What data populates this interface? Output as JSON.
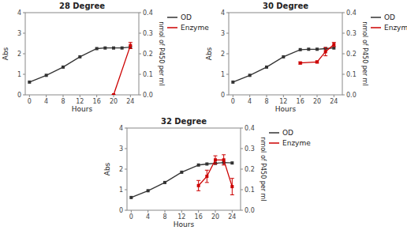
{
  "chart_data": [
    {
      "type": "line",
      "title": "28 Degree",
      "x_label": "Hours",
      "y_label": "Abs",
      "y2_label": "nmol of P450 per ml",
      "xlim": [
        -1,
        26
      ],
      "ylim": [
        0,
        4
      ],
      "y2lim": [
        0.0,
        0.4
      ],
      "xticks": [
        0,
        4,
        8,
        12,
        16,
        20,
        24
      ],
      "yticks": [
        0,
        1,
        2,
        3,
        4
      ],
      "y2ticks": [
        {
          "value": 0.0,
          "label": "0.0"
        },
        0.1,
        0.2,
        0.3,
        0.4
      ],
      "legend": "right",
      "series": [
        {
          "name": "OD",
          "color": "#333333",
          "marker": "square",
          "x": [
            0,
            4,
            8,
            12,
            16,
            18,
            20,
            22,
            24
          ],
          "values": [
            0.62,
            0.95,
            1.35,
            1.85,
            2.25,
            2.28,
            2.28,
            2.28,
            2.32
          ]
        },
        {
          "name": "Enzyme",
          "color": "#cc0000",
          "marker": "square",
          "axis": "y2",
          "x": [
            20,
            24
          ],
          "values": [
            0.0,
            0.24
          ],
          "error": [
            0.0,
            0.015
          ]
        }
      ]
    },
    {
      "type": "line",
      "title": "30 Degree",
      "x_label": "Hours",
      "y_label": "Abs",
      "y2_label": "nmol of P450 per ml",
      "xlim": [
        -1,
        26
      ],
      "ylim": [
        0,
        4
      ],
      "y2lim": [
        0.0,
        0.4
      ],
      "xticks": [
        0,
        4,
        8,
        12,
        16,
        20,
        24
      ],
      "yticks": [
        0,
        1,
        2,
        3,
        4
      ],
      "y2ticks": [
        {
          "value": 0.0,
          "label": "0.0"
        },
        0.1,
        0.2,
        0.3,
        0.4
      ],
      "legend": "right",
      "series": [
        {
          "name": "OD",
          "color": "#333333",
          "marker": "square",
          "x": [
            0,
            4,
            8,
            12,
            16,
            18,
            20,
            22,
            24
          ],
          "values": [
            0.62,
            0.95,
            1.35,
            1.85,
            2.2,
            2.22,
            2.22,
            2.25,
            2.28
          ]
        },
        {
          "name": "Enzyme",
          "color": "#cc0000",
          "marker": "square",
          "axis": "y2",
          "x": [
            16,
            20,
            22,
            24
          ],
          "values": [
            0.155,
            0.16,
            0.21,
            0.245
          ],
          "error": [
            0.005,
            0.005,
            0.02,
            0.01
          ]
        }
      ]
    },
    {
      "type": "line",
      "title": "32 Degree",
      "x_label": "Hours",
      "y_label": "Abs",
      "y2_label": "nmol of P450 per ml",
      "xlim": [
        -1,
        26
      ],
      "ylim": [
        0,
        4
      ],
      "y2lim": [
        0.0,
        0.4
      ],
      "xticks": [
        0,
        4,
        8,
        12,
        16,
        20,
        24
      ],
      "yticks": [
        0,
        1,
        2,
        3,
        4
      ],
      "y2ticks": [
        {
          "value": 0.0,
          "label": "0.0"
        },
        0.1,
        0.2,
        0.3,
        0.4
      ],
      "legend": "right",
      "series": [
        {
          "name": "OD",
          "color": "#333333",
          "marker": "square",
          "x": [
            0,
            4,
            8,
            12,
            16,
            18,
            20,
            22,
            24
          ],
          "values": [
            0.62,
            0.95,
            1.35,
            1.85,
            2.2,
            2.25,
            2.28,
            2.32,
            2.3
          ]
        },
        {
          "name": "Enzyme",
          "color": "#cc0000",
          "marker": "square",
          "axis": "y2",
          "x": [
            16,
            18,
            20,
            22,
            24
          ],
          "values": [
            0.12,
            0.165,
            0.245,
            0.245,
            0.115
          ],
          "error": [
            0.025,
            0.03,
            0.02,
            0.025,
            0.04
          ]
        }
      ]
    }
  ]
}
